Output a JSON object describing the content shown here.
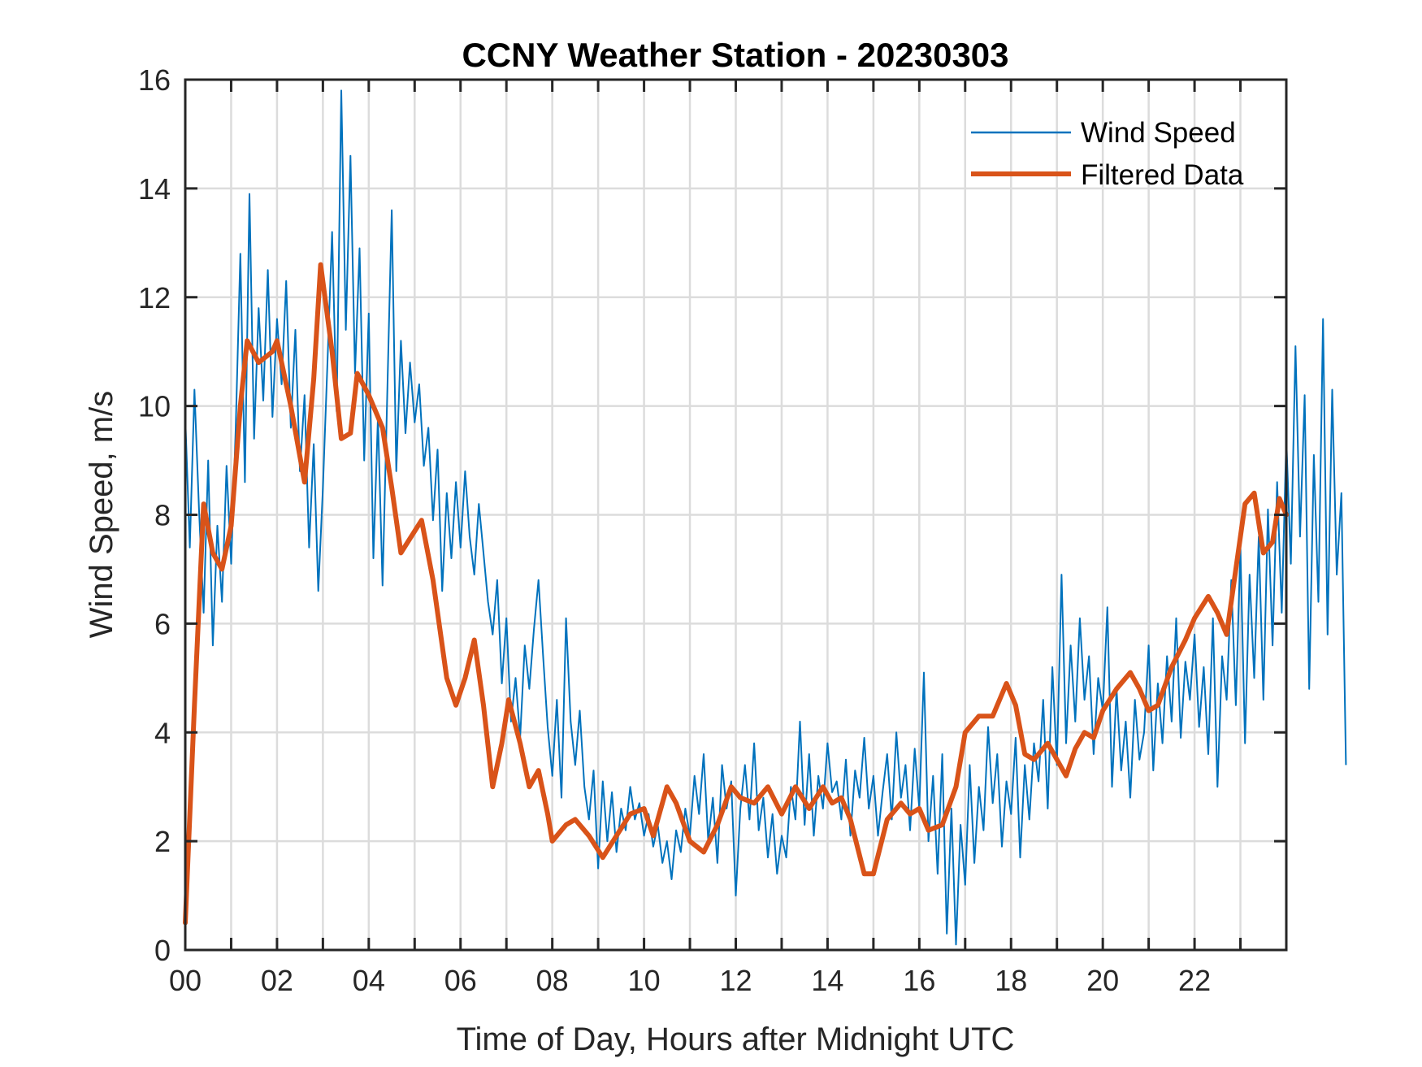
{
  "chart_data": {
    "type": "line",
    "title": "CCNY Weather Station - 20230303",
    "xlabel": "Time of Day, Hours after Midnight UTC",
    "ylabel": "Wind Speed, m/s",
    "xlim": [
      0,
      24
    ],
    "ylim": [
      0,
      16
    ],
    "x_ticks": [
      0,
      2,
      4,
      6,
      8,
      10,
      12,
      14,
      16,
      18,
      20,
      22
    ],
    "x_tick_labels": [
      "00",
      "02",
      "04",
      "06",
      "08",
      "10",
      "12",
      "14",
      "16",
      "18",
      "20",
      "22"
    ],
    "x_minor_grid_step_hours": 1,
    "y_ticks": [
      0,
      2,
      4,
      6,
      8,
      10,
      12,
      14,
      16
    ],
    "y_tick_labels": [
      "0",
      "2",
      "4",
      "6",
      "8",
      "10",
      "12",
      "14",
      "16"
    ],
    "grid": true,
    "legend_position": "top-right",
    "colors": {
      "wind_speed": "#0072BD",
      "filtered": "#D95319",
      "axis": "#262626",
      "grid": "#DCDCDC"
    },
    "series": [
      {
        "name": "Wind Speed",
        "x_start": 0,
        "x_step": 0.1,
        "values": [
          9.8,
          7.4,
          10.3,
          8.1,
          6.2,
          9.0,
          5.6,
          7.8,
          6.4,
          8.9,
          7.1,
          9.6,
          12.8,
          8.6,
          13.9,
          9.4,
          11.8,
          10.1,
          12.5,
          9.8,
          11.6,
          10.4,
          12.3,
          9.6,
          11.4,
          8.8,
          10.2,
          7.4,
          9.3,
          6.6,
          8.5,
          10.8,
          13.2,
          9.9,
          15.8,
          11.4,
          14.6,
          10.6,
          12.9,
          9.0,
          11.7,
          7.2,
          9.8,
          6.7,
          10.1,
          13.6,
          8.8,
          11.2,
          9.5,
          10.8,
          9.7,
          10.4,
          8.9,
          9.6,
          7.9,
          9.2,
          6.6,
          8.4,
          7.2,
          8.6,
          7.4,
          8.8,
          7.6,
          6.9,
          8.2,
          7.3,
          6.4,
          5.8,
          6.8,
          4.9,
          6.1,
          4.2,
          5.0,
          3.9,
          5.6,
          4.8,
          5.9,
          6.8,
          5.4,
          4.1,
          3.2,
          4.6,
          2.8,
          6.1,
          4.2,
          3.4,
          4.4,
          3.0,
          2.4,
          3.3,
          1.5,
          3.1,
          2.0,
          2.9,
          1.8,
          2.6,
          2.2,
          3.0,
          2.4,
          2.7,
          2.1,
          2.5,
          1.9,
          2.3,
          1.6,
          2.0,
          1.3,
          2.2,
          1.8,
          2.6,
          2.1,
          3.2,
          2.5,
          3.6,
          2.0,
          2.8,
          1.6,
          3.4,
          2.6,
          3.1,
          1.0,
          2.6,
          3.4,
          2.4,
          3.8,
          2.2,
          2.8,
          1.7,
          2.5,
          1.4,
          2.1,
          1.7,
          3.0,
          2.4,
          4.2,
          2.3,
          3.6,
          2.1,
          3.2,
          2.6,
          3.8,
          2.9,
          3.1,
          2.4,
          3.5,
          2.1,
          3.3,
          2.8,
          3.9,
          2.6,
          3.2,
          2.1,
          2.9,
          3.6,
          2.4,
          4.0,
          2.8,
          3.4,
          2.2,
          3.7,
          2.6,
          5.1,
          2.0,
          3.2,
          1.4,
          3.6,
          0.3,
          2.6,
          0.1,
          2.3,
          1.2,
          3.4,
          1.6,
          3.0,
          2.2,
          4.1,
          2.7,
          3.6,
          1.9,
          3.1,
          2.5,
          3.9,
          1.7,
          3.4,
          2.4,
          3.8,
          3.1,
          4.6,
          2.6,
          5.2,
          3.4,
          6.9,
          3.8,
          5.6,
          4.2,
          6.1,
          4.6,
          5.4,
          3.6,
          5.0,
          4.4,
          6.3,
          3.0,
          4.8,
          3.3,
          4.2,
          2.8,
          4.6,
          3.5,
          4.0,
          5.6,
          3.3,
          4.9,
          3.8,
          5.4,
          4.2,
          6.1,
          3.9,
          5.3,
          4.6,
          5.8,
          4.1,
          5.2,
          3.6,
          6.1,
          3.0,
          5.4,
          4.6,
          6.8,
          4.5,
          7.4,
          3.8,
          6.9,
          5.0,
          7.6,
          4.6,
          8.1,
          5.6,
          8.6,
          6.2,
          9.4,
          7.1,
          11.1,
          7.6,
          10.2,
          4.8,
          9.1,
          6.4,
          11.6,
          5.8,
          10.3,
          6.9,
          8.4,
          3.4
        ]
      },
      {
        "name": "Filtered Data",
        "x": [
          0.0,
          0.2,
          0.4,
          0.6,
          0.8,
          1.0,
          1.2,
          1.35,
          1.6,
          1.9,
          2.0,
          2.3,
          2.6,
          2.8,
          2.95,
          3.2,
          3.4,
          3.6,
          3.75,
          4.0,
          4.3,
          4.5,
          4.7,
          5.0,
          5.15,
          5.4,
          5.7,
          5.9,
          6.1,
          6.3,
          6.5,
          6.7,
          6.9,
          7.05,
          7.3,
          7.5,
          7.7,
          7.9,
          8.0,
          8.3,
          8.5,
          8.8,
          9.1,
          9.4,
          9.7,
          10.0,
          10.2,
          10.5,
          10.7,
          11.0,
          11.3,
          11.6,
          11.9,
          12.1,
          12.4,
          12.7,
          13.0,
          13.3,
          13.6,
          13.9,
          14.1,
          14.3,
          14.5,
          14.8,
          15.0,
          15.3,
          15.6,
          15.8,
          16.0,
          16.2,
          16.5,
          16.8,
          17.0,
          17.3,
          17.6,
          17.9,
          18.1,
          18.3,
          18.5,
          18.8,
          19.0,
          19.2,
          19.4,
          19.6,
          19.8,
          20.0,
          20.3,
          20.6,
          20.8,
          21.0,
          21.2,
          21.5,
          21.8,
          22.0,
          22.3,
          22.5,
          22.7,
          22.9,
          23.1,
          23.3,
          23.5,
          23.7,
          23.85,
          24.0
        ],
        "values": [
          0.5,
          4.5,
          8.2,
          7.3,
          7.0,
          7.8,
          10.0,
          11.2,
          10.8,
          11.0,
          11.2,
          10.0,
          8.6,
          10.5,
          12.6,
          11.0,
          9.4,
          9.5,
          10.6,
          10.2,
          9.6,
          8.5,
          7.3,
          7.7,
          7.9,
          6.8,
          5.0,
          4.5,
          5.0,
          5.7,
          4.5,
          3.0,
          3.8,
          4.6,
          3.8,
          3.0,
          3.3,
          2.5,
          2.0,
          2.3,
          2.4,
          2.1,
          1.7,
          2.1,
          2.5,
          2.6,
          2.1,
          3.0,
          2.7,
          2.0,
          1.8,
          2.3,
          3.0,
          2.8,
          2.7,
          3.0,
          2.5,
          3.0,
          2.6,
          3.0,
          2.7,
          2.8,
          2.4,
          1.4,
          1.4,
          2.4,
          2.7,
          2.5,
          2.6,
          2.2,
          2.3,
          3.0,
          4.0,
          4.3,
          4.3,
          4.9,
          4.5,
          3.6,
          3.5,
          3.8,
          3.5,
          3.2,
          3.7,
          4.0,
          3.9,
          4.4,
          4.8,
          5.1,
          4.8,
          4.4,
          4.5,
          5.2,
          5.7,
          6.1,
          6.5,
          6.2,
          5.8,
          7.0,
          8.2,
          8.4,
          7.3,
          7.5,
          8.3,
          8.0
        ]
      }
    ]
  }
}
